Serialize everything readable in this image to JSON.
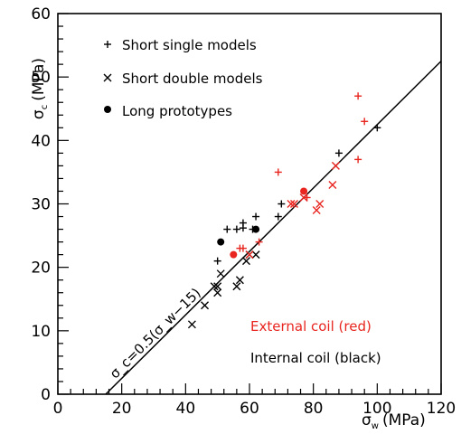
{
  "chart_data": {
    "type": "scatter",
    "xlabel": "σ_w (MPa)",
    "ylabel": "σ_c (MPa)",
    "xlim": [
      0,
      120
    ],
    "ylim": [
      0,
      60
    ],
    "x_ticks": [
      "0",
      "20",
      "40",
      "60",
      "80",
      "100",
      "120"
    ],
    "y_ticks": [
      "0",
      "10",
      "20",
      "30",
      "40",
      "50",
      "60"
    ],
    "grid": false,
    "legend": {
      "placement": "top-left",
      "entries": [
        {
          "label": "Short single models",
          "marker": "plus"
        },
        {
          "label": "Short double models",
          "marker": "cross"
        },
        {
          "label": "Long prototypes",
          "marker": "dot"
        }
      ]
    },
    "color_notes": [
      {
        "text": "External coil (red)",
        "color": "#e8251f"
      },
      {
        "text": "Internal coil (black)",
        "color": "#000000"
      }
    ],
    "fit_line": {
      "label": "σ_c=0.5(σ_w−15)",
      "slope": 0.5,
      "offset": 15,
      "x_range": [
        15,
        120
      ]
    },
    "series": [
      {
        "name": "Short single models",
        "coil": "internal",
        "marker": "plus",
        "color": "#000000",
        "points": [
          [
            50,
            21
          ],
          [
            53,
            26
          ],
          [
            56,
            26
          ],
          [
            58,
            27
          ],
          [
            58,
            26.2
          ],
          [
            61,
            26
          ],
          [
            62,
            28
          ],
          [
            69,
            28
          ],
          [
            70,
            30
          ],
          [
            88,
            38
          ],
          [
            100,
            42
          ]
        ]
      },
      {
        "name": "Short single models",
        "coil": "external",
        "marker": "plus",
        "color": "#e8251f",
        "points": [
          [
            57,
            23
          ],
          [
            58,
            23
          ],
          [
            63,
            24
          ],
          [
            69,
            35
          ],
          [
            78,
            31
          ],
          [
            94,
            47
          ],
          [
            96,
            43
          ],
          [
            94,
            37
          ]
        ]
      },
      {
        "name": "Short double models",
        "coil": "internal",
        "marker": "cross",
        "color": "#000000",
        "points": [
          [
            42,
            11
          ],
          [
            46,
            14
          ],
          [
            49,
            17
          ],
          [
            50,
            17
          ],
          [
            50,
            16
          ],
          [
            51,
            19
          ],
          [
            56,
            17
          ],
          [
            57,
            18
          ],
          [
            59,
            21
          ],
          [
            60,
            22
          ],
          [
            62,
            22
          ]
        ]
      },
      {
        "name": "Short double models",
        "coil": "external",
        "marker": "cross",
        "color": "#e8251f",
        "points": [
          [
            60,
            22
          ],
          [
            73,
            30
          ],
          [
            74,
            30
          ],
          [
            77,
            31
          ],
          [
            81,
            29
          ],
          [
            82,
            30
          ],
          [
            86,
            33
          ],
          [
            87,
            36
          ]
        ]
      },
      {
        "name": "Long prototypes",
        "coil": "internal",
        "marker": "dot",
        "color": "#000000",
        "points": [
          [
            51,
            24
          ],
          [
            62,
            26
          ]
        ]
      },
      {
        "name": "Long prototypes",
        "coil": "external",
        "marker": "dot",
        "color": "#e8251f",
        "points": [
          [
            55,
            22
          ],
          [
            77,
            32
          ]
        ]
      }
    ]
  }
}
